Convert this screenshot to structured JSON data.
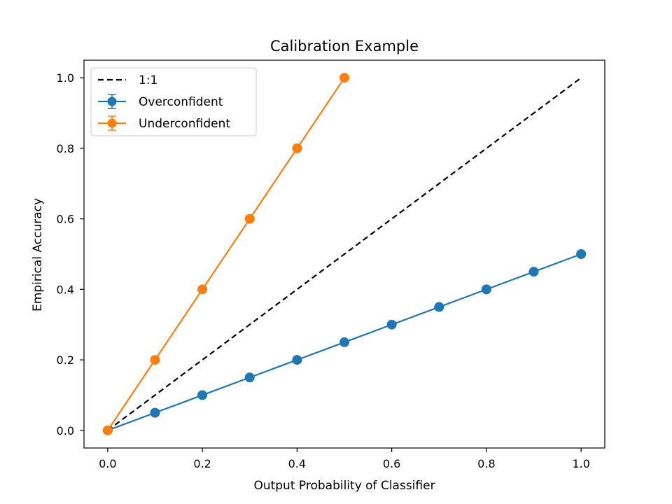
{
  "chart_data": {
    "type": "line",
    "title": "Calibration Example",
    "xlabel": "Output Probability of Classifier",
    "ylabel": "Empirical Accuracy",
    "xlim": [
      -0.05,
      1.05
    ],
    "ylim": [
      -0.05,
      1.05
    ],
    "xticks": [
      "0.0",
      "0.2",
      "0.4",
      "0.6",
      "0.8",
      "1.0"
    ],
    "yticks": [
      "0.0",
      "0.2",
      "0.4",
      "0.6",
      "0.8",
      "1.0"
    ],
    "grid": false,
    "legend_position": "top-left",
    "series": [
      {
        "name": "1:1",
        "style": "dashed",
        "color": "#000000",
        "markers": false,
        "x": [
          0.0,
          1.0
        ],
        "y": [
          0.0,
          1.0
        ]
      },
      {
        "name": "Overconfident",
        "style": "solid",
        "color": "#1f77b4",
        "markers": true,
        "errorbars": true,
        "x": [
          0.0,
          0.1,
          0.2,
          0.3,
          0.4,
          0.5,
          0.6,
          0.7,
          0.8,
          0.9,
          1.0
        ],
        "y": [
          0.0,
          0.05,
          0.1,
          0.15,
          0.2,
          0.25,
          0.3,
          0.35,
          0.4,
          0.45,
          0.5
        ]
      },
      {
        "name": "Underconfident",
        "style": "solid",
        "color": "#ff7f0e",
        "markers": true,
        "errorbars": true,
        "x": [
          0.0,
          0.1,
          0.2,
          0.3,
          0.4,
          0.5
        ],
        "y": [
          0.0,
          0.2,
          0.4,
          0.6,
          0.8,
          1.0
        ]
      }
    ]
  }
}
